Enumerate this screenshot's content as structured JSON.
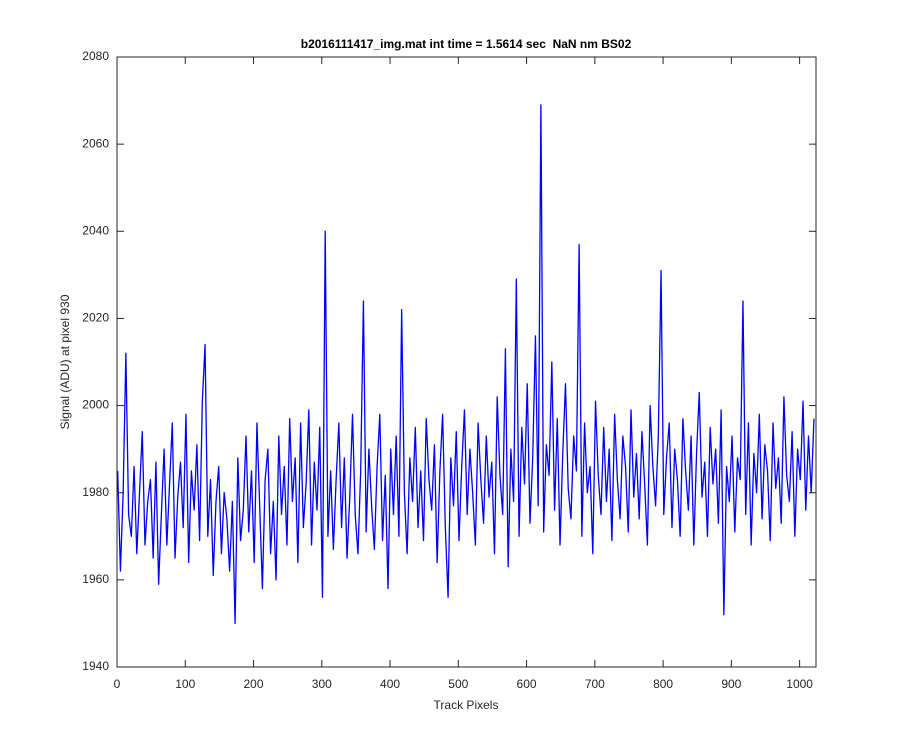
{
  "chart_data": {
    "type": "line",
    "title": "b2016111417_img.mat int time = 1.5614 sec  NaN nm BS02",
    "x_label": "Track Pixels",
    "y_label": "Signal (ADU) at pixel 930",
    "color": "#0000ff",
    "xlim": [
      0,
      1024
    ],
    "xticks": [
      0,
      100,
      200,
      300,
      400,
      500,
      600,
      700,
      800,
      900,
      1000
    ],
    "ylim": [
      1940,
      2080
    ],
    "yticks": [
      1940,
      1960,
      1980,
      2000,
      2020,
      2040,
      2060,
      2080
    ],
    "x": [
      1,
      5,
      9,
      13,
      17,
      21,
      25,
      29,
      33,
      37,
      41,
      45,
      49,
      53,
      57,
      61,
      65,
      69,
      73,
      77,
      81,
      85,
      89,
      93,
      97,
      101,
      105,
      109,
      113,
      117,
      121,
      125,
      129,
      133,
      137,
      141,
      145,
      149,
      153,
      157,
      161,
      165,
      169,
      173,
      177,
      181,
      185,
      189,
      193,
      197,
      201,
      205,
      209,
      213,
      217,
      221,
      225,
      229,
      233,
      237,
      241,
      245,
      249,
      253,
      257,
      261,
      265,
      269,
      273,
      277,
      281,
      285,
      289,
      293,
      297,
      301,
      305,
      309,
      313,
      317,
      321,
      325,
      329,
      333,
      337,
      341,
      345,
      349,
      353,
      357,
      361,
      365,
      369,
      373,
      377,
      381,
      385,
      389,
      393,
      397,
      401,
      405,
      409,
      413,
      417,
      421,
      425,
      429,
      433,
      437,
      441,
      445,
      449,
      453,
      457,
      461,
      465,
      469,
      473,
      477,
      481,
      485,
      489,
      493,
      497,
      501,
      505,
      509,
      513,
      517,
      521,
      525,
      529,
      533,
      537,
      541,
      545,
      549,
      553,
      557,
      561,
      565,
      569,
      573,
      577,
      581,
      585,
      589,
      593,
      597,
      601,
      605,
      609,
      613,
      617,
      621,
      625,
      629,
      633,
      637,
      641,
      645,
      649,
      653,
      657,
      661,
      665,
      669,
      673,
      677,
      681,
      685,
      689,
      693,
      697,
      701,
      705,
      709,
      713,
      717,
      721,
      725,
      729,
      733,
      737,
      741,
      745,
      749,
      753,
      757,
      761,
      765,
      769,
      773,
      777,
      781,
      785,
      789,
      793,
      797,
      801,
      805,
      809,
      813,
      817,
      821,
      825,
      829,
      833,
      837,
      841,
      845,
      849,
      853,
      857,
      861,
      865,
      869,
      873,
      877,
      881,
      885,
      889,
      893,
      897,
      901,
      905,
      909,
      913,
      917,
      921,
      925,
      929,
      933,
      937,
      941,
      945,
      949,
      953,
      957,
      961,
      965,
      969,
      973,
      977,
      981,
      985,
      989,
      993,
      997,
      1001,
      1005,
      1009,
      1013,
      1017,
      1021
    ],
    "values": [
      1985,
      1962,
      1980,
      2012,
      1975,
      1970,
      1986,
      1966,
      1980,
      1994,
      1968,
      1978,
      1983,
      1965,
      1987,
      1959,
      1975,
      1990,
      1968,
      1982,
      1996,
      1965,
      1979,
      1987,
      1972,
      1998,
      1964,
      1985,
      1976,
      1991,
      1969,
      2001,
      2014,
      1970,
      1983,
      1961,
      1978,
      1986,
      1966,
      1980,
      1974,
      1962,
      1978,
      1950,
      1988,
      1969,
      1976,
      1993,
      1971,
      1985,
      1964,
      1996,
      1977,
      1958,
      1983,
      1990,
      1966,
      1978,
      1960,
      1993,
      1975,
      1986,
      1968,
      1997,
      1978,
      1988,
      1964,
      1996,
      1972,
      1982,
      1999,
      1968,
      1987,
      1976,
      1995,
      1956,
      2040,
      1970,
      1985,
      1967,
      1983,
      1996,
      1972,
      1988,
      1965,
      1979,
      1998,
      1975,
      1966,
      1985,
      2024,
      1971,
      1990,
      1977,
      1967,
      1986,
      1998,
      1969,
      1984,
      1958,
      1990,
      1975,
      1993,
      1970,
      2022,
      1980,
      1966,
      1988,
      1978,
      1995,
      1972,
      1985,
      1969,
      1997,
      1983,
      1976,
      1991,
      1964,
      1985,
      1998,
      1972,
      1956,
      1988,
      1977,
      1994,
      1969,
      1986,
      1999,
      1975,
      1990,
      1980,
      1968,
      1996,
      1983,
      1973,
      1993,
      1979,
      1987,
      1966,
      2002,
      1984,
      1975,
      2013,
      1963,
      1990,
      1978,
      2029,
      1970,
      1995,
      1982,
      2005,
      1973,
      1988,
      2016,
      1977,
      2069,
      1971,
      1991,
      1984,
      2010,
      1976,
      1997,
      1968,
      1989,
      2005,
      1981,
      1974,
      1993,
      1985,
      2037,
      1970,
      1996,
      1980,
      1986,
      1966,
      2001,
      1984,
      1975,
      1995,
      1978,
      1990,
      1969,
      1998,
      1983,
      1974,
      1993,
      1986,
      1971,
      1999,
      1979,
      1989,
      1974,
      1994,
      1982,
      1968,
      2000,
      1986,
      1977,
      1993,
      2031,
      1975,
      1988,
      1996,
      1972,
      1990,
      1983,
      1970,
      1997,
      1985,
      1976,
      1993,
      1968,
      1989,
      2003,
      1979,
      1987,
      1970,
      1995,
      1982,
      1990,
      1973,
      1999,
      1952,
      1986,
      1978,
      1993,
      1971,
      1988,
      1983,
      2024,
      1975,
      1996,
      1968,
      1989,
      1980,
      1998,
      1974,
      1991,
      1985,
      1969,
      1996,
      1981,
      1988,
      1973,
      2002,
      1984,
      1978,
      1994,
      1970,
      1990,
      1983,
      2001,
      1976,
      1993,
      1980,
      1997
    ]
  }
}
